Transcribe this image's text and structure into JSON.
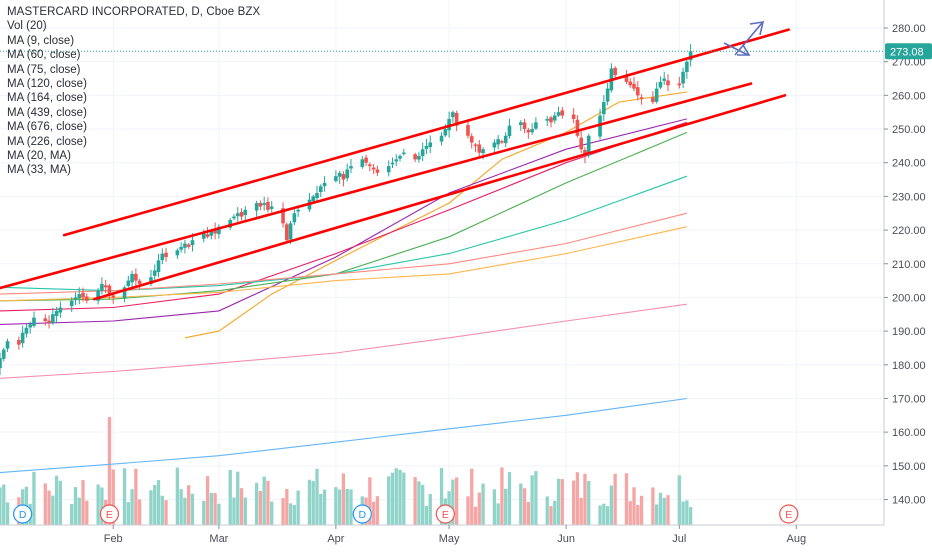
{
  "header": {
    "title": "MASTERCARD INCORPORATED, D, Cboe BZX",
    "indicators": [
      "Vol (20)",
      "MA (9, close)",
      "MA (60, close)",
      "MA (75, close)",
      "MA (120, close)",
      "MA (164, close)",
      "MA (439, close)",
      "MA (676, close)",
      "MA (226, close)",
      "MA (20, MA)",
      "MA (33, MA)"
    ]
  },
  "price_badge": {
    "label": "273.08",
    "color": "#26a69a"
  },
  "event_markers": [
    {
      "label": "D",
      "type": "dividend",
      "date": "2019-01-08"
    },
    {
      "label": "E",
      "type": "earnings",
      "date": "2019-01-31"
    },
    {
      "label": "D",
      "type": "dividend",
      "date": "2019-04-08"
    },
    {
      "label": "E",
      "type": "earnings",
      "date": "2019-04-30"
    },
    {
      "label": "E",
      "type": "earnings",
      "date": "2019-07-30"
    }
  ],
  "colors": {
    "up": "#26a69a",
    "down": "#ef5350",
    "channel": "#ff0000",
    "arrow": "#5b6bc0",
    "grid": "#f0f3fa"
  },
  "chart_data": {
    "type": "candlestick",
    "title": "MASTERCARD INCORPORATED, D, Cboe BZX",
    "x_axis": {
      "ticks": [
        "Feb",
        "Mar",
        "Apr",
        "May",
        "Jun",
        "Jul",
        "Aug"
      ],
      "range": [
        "2019-01-02",
        "2019-08-20"
      ]
    },
    "y_axis": {
      "side": "right",
      "ticks": [
        140,
        150,
        160,
        170,
        180,
        190,
        200,
        210,
        220,
        230,
        240,
        250,
        260,
        270,
        280
      ],
      "range": [
        135,
        285
      ]
    },
    "last_price": 273.08,
    "candles_start": "2019-01-02",
    "closes": [
      182,
      184.5,
      187,
      186,
      189.5,
      191,
      192,
      194,
      193,
      192.5,
      195,
      196,
      197,
      199,
      200,
      201,
      200,
      199,
      202,
      204,
      203,
      201,
      200,
      203,
      205,
      207,
      205,
      204,
      206,
      208,
      211,
      213,
      212,
      214,
      215,
      216,
      215,
      217,
      219,
      218,
      220,
      219,
      221,
      223,
      224,
      225,
      224,
      226,
      228,
      227,
      228,
      226,
      227,
      222,
      217,
      222,
      225,
      226,
      229,
      230,
      231,
      233,
      234,
      236,
      237,
      235,
      238,
      239,
      241,
      240,
      239,
      238,
      237,
      239,
      240,
      241,
      242,
      243,
      241,
      242,
      244,
      245,
      246,
      248,
      250,
      253,
      255,
      251,
      248,
      246,
      245,
      243,
      244,
      246,
      247,
      246,
      248,
      251,
      252,
      250,
      249,
      250,
      252,
      253,
      252,
      254,
      255,
      254,
      253,
      248,
      244,
      242,
      248,
      254,
      258,
      262,
      268,
      266,
      264,
      263,
      262,
      260,
      259,
      258,
      262,
      264,
      265,
      263,
      263,
      267,
      270,
      273.08
    ],
    "series": [
      {
        "name": "MA (9, close)",
        "color": "#f5a623",
        "points": [
          [
            "2019-02-20",
            188
          ],
          [
            "2019-03-01",
            190
          ],
          [
            "2019-03-15",
            201
          ],
          [
            "2019-04-01",
            211
          ],
          [
            "2019-04-15",
            219
          ],
          [
            "2019-05-01",
            228
          ],
          [
            "2019-05-15",
            241
          ],
          [
            "2019-06-01",
            249
          ],
          [
            "2019-06-15",
            258
          ],
          [
            "2019-07-03",
            261
          ]
        ]
      },
      {
        "name": "MA (60, close)",
        "color": "#9c27b0",
        "points": [
          [
            "2019-01-02",
            192
          ],
          [
            "2019-02-01",
            193
          ],
          [
            "2019-03-01",
            196
          ],
          [
            "2019-04-01",
            212
          ],
          [
            "2019-05-01",
            231
          ],
          [
            "2019-06-01",
            244
          ],
          [
            "2019-07-03",
            253
          ]
        ]
      },
      {
        "name": "MA (75, close)",
        "color": "#e91e63",
        "points": [
          [
            "2019-01-02",
            196
          ],
          [
            "2019-02-01",
            197
          ],
          [
            "2019-03-01",
            201
          ],
          [
            "2019-04-01",
            213
          ],
          [
            "2019-05-01",
            226
          ],
          [
            "2019-06-01",
            240
          ],
          [
            "2019-07-03",
            252
          ]
        ]
      },
      {
        "name": "MA (120, close)",
        "color": "#4caf50",
        "points": [
          [
            "2019-01-02",
            199
          ],
          [
            "2019-02-01",
            199.5
          ],
          [
            "2019-03-01",
            202
          ],
          [
            "2019-04-01",
            207
          ],
          [
            "2019-05-01",
            218
          ],
          [
            "2019-06-01",
            234
          ],
          [
            "2019-07-03",
            249
          ]
        ]
      },
      {
        "name": "MA (164, close)",
        "color": "#26c6a9",
        "points": [
          [
            "2019-01-02",
            203
          ],
          [
            "2019-02-01",
            202
          ],
          [
            "2019-03-01",
            203.5
          ],
          [
            "2019-04-01",
            207
          ],
          [
            "2019-05-01",
            213
          ],
          [
            "2019-06-01",
            223
          ],
          [
            "2019-07-03",
            236
          ]
        ]
      },
      {
        "name": "MA (226, close)",
        "color": "#ff8a80",
        "points": [
          [
            "2019-01-02",
            201
          ],
          [
            "2019-02-01",
            202
          ],
          [
            "2019-03-01",
            204
          ],
          [
            "2019-04-01",
            207
          ],
          [
            "2019-05-01",
            210
          ],
          [
            "2019-06-01",
            216
          ],
          [
            "2019-07-03",
            225
          ]
        ]
      },
      {
        "name": "MA (439, close)",
        "color": "#ffb74d",
        "points": [
          [
            "2019-01-02",
            199
          ],
          [
            "2019-02-01",
            200
          ],
          [
            "2019-03-01",
            201.5
          ],
          [
            "2019-04-01",
            205
          ],
          [
            "2019-05-01",
            207
          ],
          [
            "2019-06-01",
            213
          ],
          [
            "2019-07-03",
            221
          ]
        ]
      },
      {
        "name": "MA (676, close)",
        "color": "#f48fb1",
        "points": [
          [
            "2019-01-02",
            176
          ],
          [
            "2019-02-01",
            178
          ],
          [
            "2019-03-01",
            180.5
          ],
          [
            "2019-04-01",
            183.5
          ],
          [
            "2019-05-01",
            188
          ],
          [
            "2019-06-01",
            193
          ],
          [
            "2019-07-03",
            198
          ]
        ]
      },
      {
        "name": "MA (20, MA)",
        "color": "#64b5f6",
        "points": [
          [
            "2019-01-02",
            148
          ],
          [
            "2019-02-01",
            150.5
          ],
          [
            "2019-03-01",
            153
          ],
          [
            "2019-04-01",
            157
          ],
          [
            "2019-05-01",
            161
          ],
          [
            "2019-06-01",
            165
          ],
          [
            "2019-07-03",
            170
          ]
        ]
      }
    ],
    "channel_lines": [
      {
        "name": "upper",
        "from": [
          "2019-01-19",
          218.5
        ],
        "to": [
          "2019-07-30",
          279.5
        ]
      },
      {
        "name": "middle",
        "from": [
          "2019-01-01",
          202.5
        ],
        "to": [
          "2019-07-20",
          263.5
        ]
      },
      {
        "name": "lower",
        "from": [
          "2019-01-27",
          199.5
        ],
        "to": [
          "2019-07-29",
          260
        ]
      }
    ],
    "volume": {
      "max_bar": 13.4,
      "note": "relative volume heights"
    }
  }
}
